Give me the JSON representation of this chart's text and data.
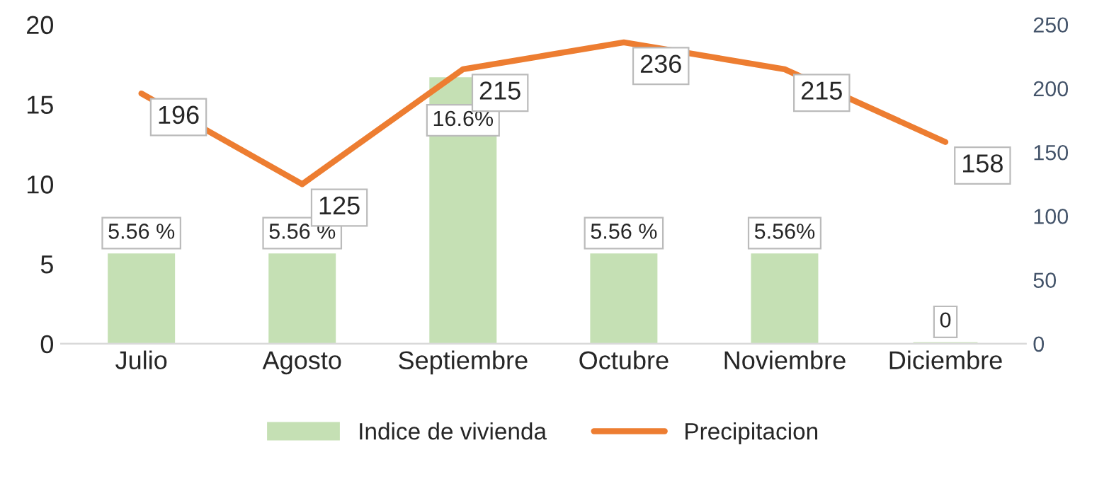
{
  "chart_data": {
    "type": "bar",
    "categories": [
      "Julio",
      "Agosto",
      "Septiembre",
      "Octubre",
      "Noviembre",
      "Diciembre"
    ],
    "series": [
      {
        "name": "Indice de vivienda",
        "color": "#c5e0b4",
        "values": [
          5.56,
          5.56,
          16.6,
          5.56,
          5.56,
          0
        ],
        "value_labels": [
          "5.56 %",
          "5.56 %",
          "16.6%",
          "5.56 %",
          "5.56%",
          "0"
        ]
      },
      {
        "name": "Precipitacion",
        "type": "line",
        "axis": "y2",
        "color": "#ed7d31",
        "values": [
          196,
          125,
          215,
          236,
          215,
          158
        ],
        "value_labels": [
          "196",
          "125",
          "215",
          "236",
          "215",
          "158"
        ]
      }
    ],
    "ylim": [
      0,
      20
    ],
    "yticks": [
      0,
      5,
      10,
      15,
      20
    ],
    "y2lim": [
      0,
      250
    ],
    "y2ticks": [
      0,
      50,
      100,
      150,
      200,
      250
    ],
    "grid": false,
    "legend": "bottom",
    "marker": "none",
    "line_style": "solid"
  }
}
